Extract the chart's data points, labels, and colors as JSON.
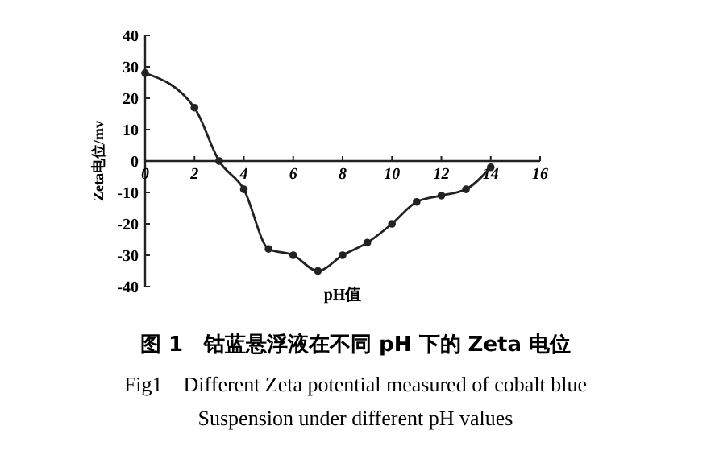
{
  "chart_data": {
    "type": "line",
    "title": "图 1　钴蓝悬浮液在不同 pH 下的 Zeta 电位",
    "subtitle": "Fig1　Different Zeta potential measured of cobalt blue Suspension under different pH values",
    "xlabel": "pH值",
    "ylabel": "Zeta电位/mv",
    "x": [
      0,
      2,
      3,
      4,
      5,
      6,
      7,
      8,
      9,
      10,
      11,
      12,
      13,
      14
    ],
    "series": [
      {
        "color": "#222222",
        "values": [
          28,
          17,
          0,
          -9,
          -28,
          -30,
          -35,
          -30,
          -26,
          -20,
          -13,
          -11,
          -9,
          -2
        ]
      }
    ],
    "xlim": [
      0,
      16
    ],
    "xticks": [
      0,
      2,
      4,
      6,
      8,
      10,
      12,
      14,
      16
    ],
    "ylim": [
      -40,
      40
    ],
    "yticks": [
      40,
      30,
      20,
      10,
      0,
      -10,
      -20,
      -30,
      -40
    ],
    "marker": "circle",
    "line_style": "solid"
  }
}
